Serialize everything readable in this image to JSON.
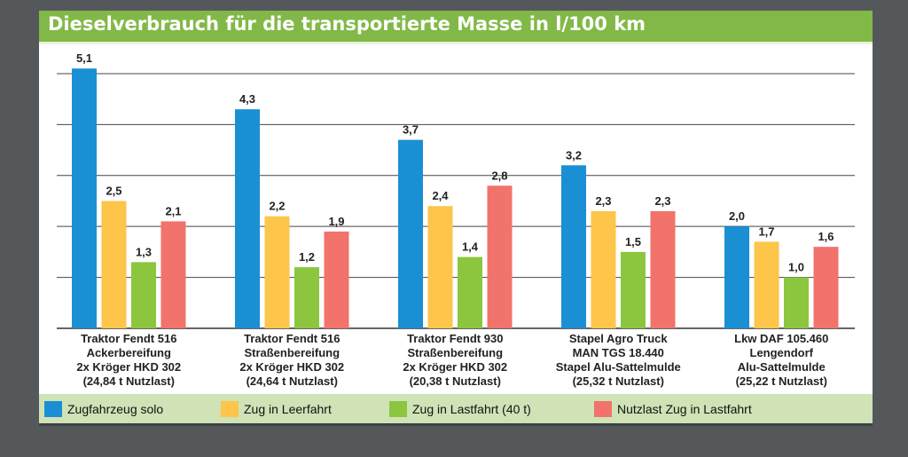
{
  "colors": {
    "background": "#55585b",
    "title_bar": "#82b848",
    "legend_bg": "#cfe3b6"
  },
  "chart_data": {
    "type": "bar",
    "title": "Dieselverbrauch für die transportierte Masse in l/100 km",
    "xlabel": "",
    "ylabel": "",
    "ylim": [
      0,
      5.4
    ],
    "grid": true,
    "legend_position": "bottom",
    "categories": [
      [
        "Traktor Fendt 516",
        "Ackerbereifung",
        "2x Kröger HKD 302",
        "(24,84 t Nutzlast)"
      ],
      [
        "Traktor Fendt 516",
        "Straßenbereifung",
        "2x Kröger HKD 302",
        "(24,64 t Nutzlast)"
      ],
      [
        "Traktor Fendt 930",
        "Straßenbereifung",
        "2x Kröger HKD 302",
        "(20,38 t Nutzlast)"
      ],
      [
        "Stapel Agro Truck",
        "MAN TGS 18.440",
        "Stapel Alu-Sattelmulde",
        "(25,32 t Nutzlast)"
      ],
      [
        "Lkw DAF 105.460",
        "Lengendorf",
        "Alu-Sattelmulde",
        "(25,22 t Nutzlast)"
      ]
    ],
    "series": [
      {
        "name": "Zugfahrzeug solo",
        "color": "#1b8fd4",
        "values": [
          5.1,
          4.3,
          3.7,
          3.2,
          2.0
        ],
        "labels": [
          "5,1",
          "4,3",
          "3,7",
          "3,2",
          "2,0"
        ]
      },
      {
        "name": "Zug in Leerfahrt",
        "color": "#fdc54a",
        "values": [
          2.5,
          2.2,
          2.4,
          2.3,
          1.7
        ],
        "labels": [
          "2,5",
          "2,2",
          "2,4",
          "2,3",
          "1,7"
        ]
      },
      {
        "name": "Zug in Lastfahrt (40 t)",
        "color": "#8cc63f",
        "values": [
          1.3,
          1.2,
          1.4,
          1.5,
          1.0
        ],
        "labels": [
          "1,3",
          "1,2",
          "1,4",
          "1,5",
          "1,0"
        ]
      },
      {
        "name": "Nutzlast Zug in Lastfahrt",
        "color": "#f1736b",
        "values": [
          2.1,
          1.9,
          2.8,
          2.3,
          1.6
        ],
        "labels": [
          "2,1",
          "1,9",
          "2,8",
          "2,3",
          "1,6"
        ]
      }
    ]
  }
}
